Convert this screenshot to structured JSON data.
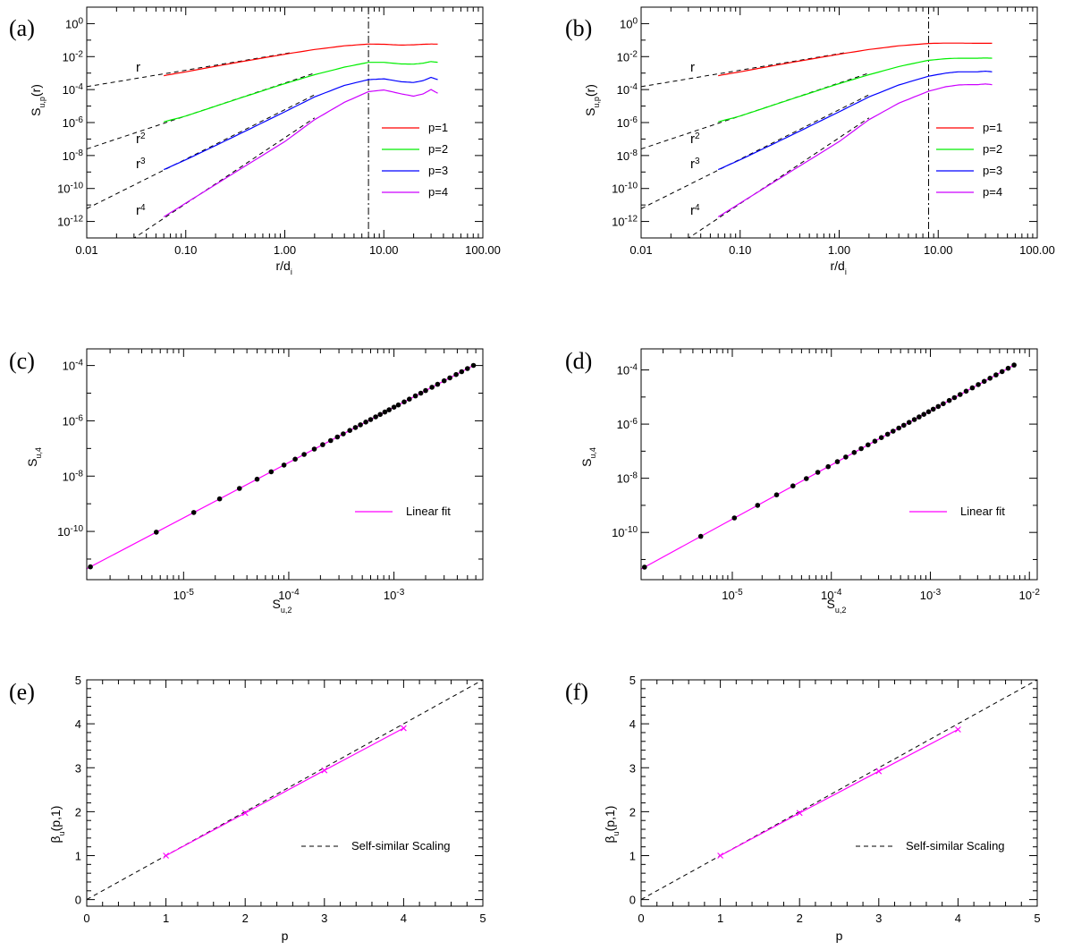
{
  "chart_data": [
    {
      "id": "a",
      "panel_label": "(a)",
      "type": "line",
      "scale": "loglog",
      "xlabel": "r/d",
      "xlabel_sub": "i",
      "ylabel": "S",
      "ylabel_sub": "u,p",
      "ylabel_tail": "(r)",
      "xlim": [
        0.01,
        100
      ],
      "ylim": [
        1e-13,
        10
      ],
      "xticks": [
        0.01,
        0.1,
        1,
        10,
        100
      ],
      "xtick_labels": [
        "0.01",
        "0.10",
        "1.00",
        "10.00",
        "100.00"
      ],
      "yticks": [
        -12,
        -10,
        -8,
        -6,
        -4,
        -2,
        0
      ],
      "vline": 7.0,
      "series": [
        {
          "name": "p=1",
          "color": "#ff0000",
          "x": [
            0.06,
            0.1,
            0.3,
            1,
            2,
            4,
            7,
            10,
            15,
            20,
            25,
            30,
            35
          ],
          "y": [
            0.0007,
            0.0012,
            0.004,
            0.014,
            0.027,
            0.045,
            0.058,
            0.056,
            0.05,
            0.052,
            0.056,
            0.058,
            0.057
          ]
        },
        {
          "name": "p=2",
          "color": "#00ee00",
          "x": [
            0.06,
            0.1,
            0.3,
            1,
            2,
            4,
            7,
            10,
            15,
            20,
            25,
            30,
            35
          ],
          "y": [
            1.1e-06,
            2.5e-06,
            2.2e-05,
            0.00023,
            0.0008,
            0.0023,
            0.0045,
            0.0045,
            0.0036,
            0.0035,
            0.004,
            0.005,
            0.0045
          ]
        },
        {
          "name": "p=3",
          "color": "#0000ff",
          "x": [
            0.06,
            0.1,
            0.3,
            1,
            2,
            4,
            7,
            10,
            15,
            20,
            25,
            30,
            35
          ],
          "y": [
            1.4e-09,
            5.5e-09,
            1.3e-07,
            4.5e-06,
            3.6e-05,
            0.00018,
            0.0004,
            0.00045,
            0.0003,
            0.00027,
            0.00035,
            0.00055,
            0.0004
          ]
        },
        {
          "name": "p=4",
          "color": "#cc00ff",
          "x": [
            0.06,
            0.1,
            0.3,
            1,
            2,
            4,
            7,
            10,
            15,
            20,
            25,
            30,
            35
          ],
          "y": [
            1.9e-12,
            1.3e-11,
            8e-10,
            7e-08,
            1.5e-06,
            1.7e-05,
            7.5e-05,
            9.5e-05,
            5.5e-05,
            4e-05,
            5.5e-05,
            0.0001,
            6e-05
          ]
        }
      ],
      "reference_lines": [
        {
          "label": "r",
          "power": 1,
          "amp": 0.015,
          "xmin": 0.01,
          "xmax": 1.2
        },
        {
          "label": "r",
          "power": 2,
          "amp": 0.00025,
          "xmin": 0.01,
          "xmax": 2.0
        },
        {
          "label": "r",
          "power": 3,
          "amp": 6e-06,
          "xmin": 0.01,
          "xmax": 2.0
        },
        {
          "label": "r",
          "power": 4,
          "amp": 1.2e-07,
          "xmin": 0.018,
          "xmax": 2.0
        }
      ],
      "ref_labels": [
        "r",
        "r",
        "r",
        "r"
      ],
      "ref_superscripts": [
        "",
        "2",
        "3",
        "4"
      ],
      "legend": [
        "p=1",
        "p=2",
        "p=3",
        "p=4"
      ],
      "legend_position": "lower-right"
    },
    {
      "id": "b",
      "panel_label": "(b)",
      "type": "line",
      "scale": "loglog",
      "xlabel": "r/d",
      "xlabel_sub": "i",
      "ylabel": "S",
      "ylabel_sub": "u,p",
      "ylabel_tail": "(r)",
      "xlim": [
        0.01,
        100
      ],
      "ylim": [
        1e-13,
        10
      ],
      "xticks": [
        0.01,
        0.1,
        1,
        10,
        100
      ],
      "xtick_labels": [
        "0.01",
        "0.10",
        "1.00",
        "10.00",
        "100.00"
      ],
      "yticks": [
        -12,
        -10,
        -8,
        -6,
        -4,
        -2,
        0
      ],
      "vline": 8.0,
      "series": [
        {
          "name": "p=1",
          "color": "#ff0000",
          "x": [
            0.06,
            0.1,
            0.3,
            1,
            2,
            4,
            8,
            12,
            16,
            20,
            25,
            30,
            35
          ],
          "y": [
            0.0007,
            0.0012,
            0.004,
            0.014,
            0.027,
            0.045,
            0.063,
            0.066,
            0.066,
            0.065,
            0.064,
            0.064,
            0.064
          ]
        },
        {
          "name": "p=2",
          "color": "#00ee00",
          "x": [
            0.06,
            0.1,
            0.3,
            1,
            2,
            4,
            8,
            12,
            16,
            20,
            25,
            30,
            35
          ],
          "y": [
            1.1e-06,
            2.5e-06,
            2.2e-05,
            0.00023,
            0.0008,
            0.0025,
            0.006,
            0.0075,
            0.008,
            0.008,
            0.008,
            0.0082,
            0.008
          ]
        },
        {
          "name": "p=3",
          "color": "#0000ff",
          "x": [
            0.06,
            0.1,
            0.3,
            1,
            2,
            4,
            8,
            12,
            16,
            20,
            25,
            30,
            35
          ],
          "y": [
            1.4e-09,
            5.5e-09,
            1.3e-07,
            4.5e-06,
            3.6e-05,
            0.00019,
            0.00065,
            0.001,
            0.0012,
            0.0012,
            0.0012,
            0.0013,
            0.0012
          ]
        },
        {
          "name": "p=4",
          "color": "#cc00ff",
          "x": [
            0.06,
            0.1,
            0.3,
            1,
            2,
            4,
            8,
            12,
            16,
            20,
            25,
            30,
            35
          ],
          "y": [
            1.9e-12,
            1.3e-11,
            8e-10,
            7e-08,
            1.5e-06,
            1.5e-05,
            8e-05,
            0.00015,
            0.00019,
            0.0002,
            0.0002,
            0.00022,
            0.0002
          ]
        }
      ],
      "reference_lines": [
        {
          "label": "r",
          "power": 1,
          "amp": 0.015,
          "xmin": 0.01,
          "xmax": 1.2
        },
        {
          "label": "r",
          "power": 2,
          "amp": 0.00025,
          "xmin": 0.01,
          "xmax": 2.0
        },
        {
          "label": "r",
          "power": 3,
          "amp": 6e-06,
          "xmin": 0.01,
          "xmax": 2.0
        },
        {
          "label": "r",
          "power": 4,
          "amp": 1.2e-07,
          "xmin": 0.018,
          "xmax": 2.0
        }
      ],
      "ref_labels": [
        "r",
        "r",
        "r",
        "r"
      ],
      "ref_superscripts": [
        "",
        "2",
        "3",
        "4"
      ],
      "legend": [
        "p=1",
        "p=2",
        "p=3",
        "p=4"
      ],
      "legend_position": "lower-right"
    },
    {
      "id": "c",
      "panel_label": "(c)",
      "type": "scatter",
      "scale": "loglog",
      "xlabel": "S",
      "xlabel_sub": "u,2",
      "ylabel": "S",
      "ylabel_sub": "u,4",
      "ylabel_tail": "",
      "xlim": [
        1.2e-06,
        0.007
      ],
      "ylim": [
        1.8e-12,
        0.0004
      ],
      "xticks_exp": [
        -5,
        -4,
        -3
      ],
      "yticks_exp": [
        -10,
        -8,
        -6,
        -4
      ],
      "points_x": [
        1.3e-06,
        5.5e-06,
        1.25e-05,
        2.2e-05,
        3.4e-05,
        5e-05,
        6.8e-05,
        9e-05,
        0.000115,
        0.00014,
        0.000175,
        0.00021,
        0.00025,
        0.00029,
        0.00033,
        0.00038,
        0.00043,
        0.00048,
        0.00054,
        0.0006,
        0.00067,
        0.00074,
        0.00082,
        0.0009,
        0.001,
        0.0011,
        0.00125,
        0.0014,
        0.0016,
        0.0018,
        0.002,
        0.0023,
        0.0026,
        0.003,
        0.0034,
        0.0039,
        0.0044,
        0.005,
        0.0057
      ],
      "fit_slope": 2.0,
      "fit_amp": 3.1,
      "fit_color": "#ff00ff",
      "point_color": "#000000",
      "legend": [
        "Linear fit"
      ],
      "legend_position": "lower-right"
    },
    {
      "id": "d",
      "panel_label": "(d)",
      "type": "scatter",
      "scale": "loglog",
      "xlabel": "S",
      "xlabel_sub": "u,2",
      "ylabel": "S",
      "ylabel_sub": "u,4",
      "ylabel_tail": "",
      "xlim": [
        1.2e-06,
        0.012
      ],
      "ylim": [
        1.8e-12,
        0.0006
      ],
      "xticks_exp": [
        -5,
        -4,
        -3,
        -2
      ],
      "yticks_exp": [
        -10,
        -8,
        -6,
        -4
      ],
      "points_x": [
        1.3e-06,
        4.8e-06,
        1.05e-05,
        1.8e-05,
        2.8e-05,
        4.1e-05,
        5.6e-05,
        7.3e-05,
        9.3e-05,
        0.000115,
        0.00014,
        0.00017,
        0.0002,
        0.000235,
        0.000275,
        0.00032,
        0.00037,
        0.00042,
        0.00048,
        0.00054,
        0.00061,
        0.00069,
        0.00077,
        0.00086,
        0.00096,
        0.00107,
        0.0012,
        0.00135,
        0.00155,
        0.00175,
        0.002,
        0.0023,
        0.00265,
        0.00305,
        0.0035,
        0.004,
        0.0046,
        0.0053,
        0.0061,
        0.007
      ],
      "fit_slope": 2.0,
      "fit_amp": 3.1,
      "fit_color": "#ff00ff",
      "point_color": "#000000",
      "legend": [
        "Linear fit"
      ],
      "legend_position": "lower-right"
    },
    {
      "id": "e",
      "panel_label": "(e)",
      "type": "line",
      "scale": "linear",
      "xlabel": "p",
      "ylabel": "β",
      "ylabel_sub": "u",
      "ylabel_tail": "(p,1)",
      "xlim": [
        0,
        5
      ],
      "ylim": [
        -0.15,
        5
      ],
      "xticks": [
        0,
        1,
        2,
        3,
        4,
        5
      ],
      "yticks": [
        0,
        1,
        2,
        3,
        4,
        5
      ],
      "self_similar": {
        "x": [
          0,
          5
        ],
        "y": [
          0,
          5
        ]
      },
      "measured": {
        "x": [
          1,
          2,
          3,
          4
        ],
        "y": [
          1.0,
          1.97,
          2.94,
          3.9
        ]
      },
      "measured_color": "#ff00ff",
      "legend": [
        "Self-similar Scaling"
      ],
      "legend_position": "lower-right"
    },
    {
      "id": "f",
      "panel_label": "(f)",
      "type": "line",
      "scale": "linear",
      "xlabel": "p",
      "ylabel": "β",
      "ylabel_sub": "u",
      "ylabel_tail": "(p,1)",
      "xlim": [
        0,
        5
      ],
      "ylim": [
        -0.15,
        5
      ],
      "xticks": [
        0,
        1,
        2,
        3,
        4,
        5
      ],
      "yticks": [
        0,
        1,
        2,
        3,
        4,
        5
      ],
      "self_similar": {
        "x": [
          0,
          5
        ],
        "y": [
          0,
          5
        ]
      },
      "measured": {
        "x": [
          1,
          2,
          3,
          4
        ],
        "y": [
          1.0,
          1.97,
          2.92,
          3.87
        ]
      },
      "measured_color": "#ff00ff",
      "legend": [
        "Self-similar Scaling"
      ],
      "legend_position": "lower-right"
    }
  ]
}
